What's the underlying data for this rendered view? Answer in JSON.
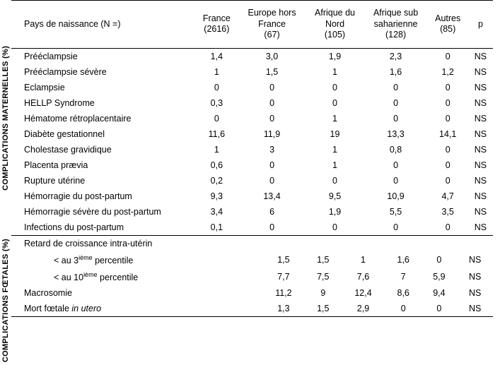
{
  "header": {
    "rowhead": "Pays de naissance (N =)",
    "cols": [
      {
        "line1": "France",
        "line2": "(2616)"
      },
      {
        "line1": "Europe hors",
        "line2": "France",
        "line3": "(67)"
      },
      {
        "line1": "Afrique du",
        "line2": "Nord",
        "line3": "(105)"
      },
      {
        "line1": "Afrique sub",
        "line2": "saharienne",
        "line3": "(128)"
      },
      {
        "line1": "Autres",
        "line2": "(85)"
      },
      {
        "line1": "p"
      }
    ]
  },
  "sections": [
    {
      "label": "COMPLICATIONS MATERNELLES (%)",
      "rows": [
        {
          "name": "Prééclampsie",
          "v": [
            "1,4",
            "3,0",
            "1,9",
            "2,3",
            "0",
            "NS"
          ]
        },
        {
          "name": "Prééclampsie sévère",
          "v": [
            "1",
            "1,5",
            "1",
            "1,6",
            "1,2",
            "NS"
          ]
        },
        {
          "name": "Eclampsie",
          "v": [
            "0",
            "0",
            "0",
            "0",
            "0",
            "NS"
          ]
        },
        {
          "name": "HELLP Syndrome",
          "v": [
            "0,3",
            "0",
            "0",
            "0",
            "0",
            "NS"
          ]
        },
        {
          "name": "Hématome rétroplacentaire",
          "v": [
            "0",
            "0",
            "1",
            "0",
            "0",
            "NS"
          ]
        },
        {
          "name": "Diabète gestationnel",
          "v": [
            "11,6",
            "11,9",
            "19",
            "13,3",
            "14,1",
            "NS"
          ]
        },
        {
          "name": "Cholestase gravidique",
          "v": [
            "1",
            "3",
            "1",
            "0,8",
            "0",
            "NS"
          ]
        },
        {
          "name": "Placenta prævia",
          "v": [
            "0,6",
            "0",
            "1",
            "0",
            "0",
            "NS"
          ]
        },
        {
          "name": "Rupture utérine",
          "v": [
            "0,2",
            "0",
            "0",
            "0",
            "0",
            "NS"
          ]
        },
        {
          "name": "Hémorragie du post-partum",
          "v": [
            "9,3",
            "13,4",
            "9,5",
            "10,9",
            "4,7",
            "NS"
          ]
        },
        {
          "name": "Hémorragie sévère du post-partum",
          "v": [
            "3,4",
            "6",
            "1,9",
            "5,5",
            "3,5",
            "NS"
          ]
        },
        {
          "name": "Infections du post-partum",
          "v": [
            "0,1",
            "0",
            "0",
            "0",
            "0",
            "NS"
          ]
        }
      ]
    },
    {
      "label": "COMPLICATIONS FŒTALES (%)",
      "rows": [
        {
          "name": "Retard de croissance intra-utérin",
          "v": [
            "",
            "",
            "",
            "",
            "",
            ""
          ]
        },
        {
          "name": "< au 3<sup>ième</sup> percentile",
          "indent": true,
          "v": [
            "1,5",
            "1,5",
            "1",
            "1,6",
            "0",
            "NS"
          ]
        },
        {
          "name": "< au 10<sup>ième</sup> percentile",
          "indent": true,
          "v": [
            "7,7",
            "7,5",
            "7,6",
            "7",
            "5,9",
            "NS"
          ]
        },
        {
          "name": "Macrosomie",
          "v": [
            "11,2",
            "9",
            "12,4",
            "8,6",
            "9,4",
            "NS"
          ]
        },
        {
          "name": "Mort fœtale <span class=\"italic\">in utero</span>",
          "v": [
            "1,3",
            "1,5",
            "2,9",
            "0",
            "0",
            "NS"
          ]
        }
      ]
    }
  ],
  "colors": {
    "text": "#000000",
    "bg": "#ffffff",
    "rule": "#000000"
  },
  "font": {
    "family": "Arial",
    "size_pt": 9.4
  }
}
